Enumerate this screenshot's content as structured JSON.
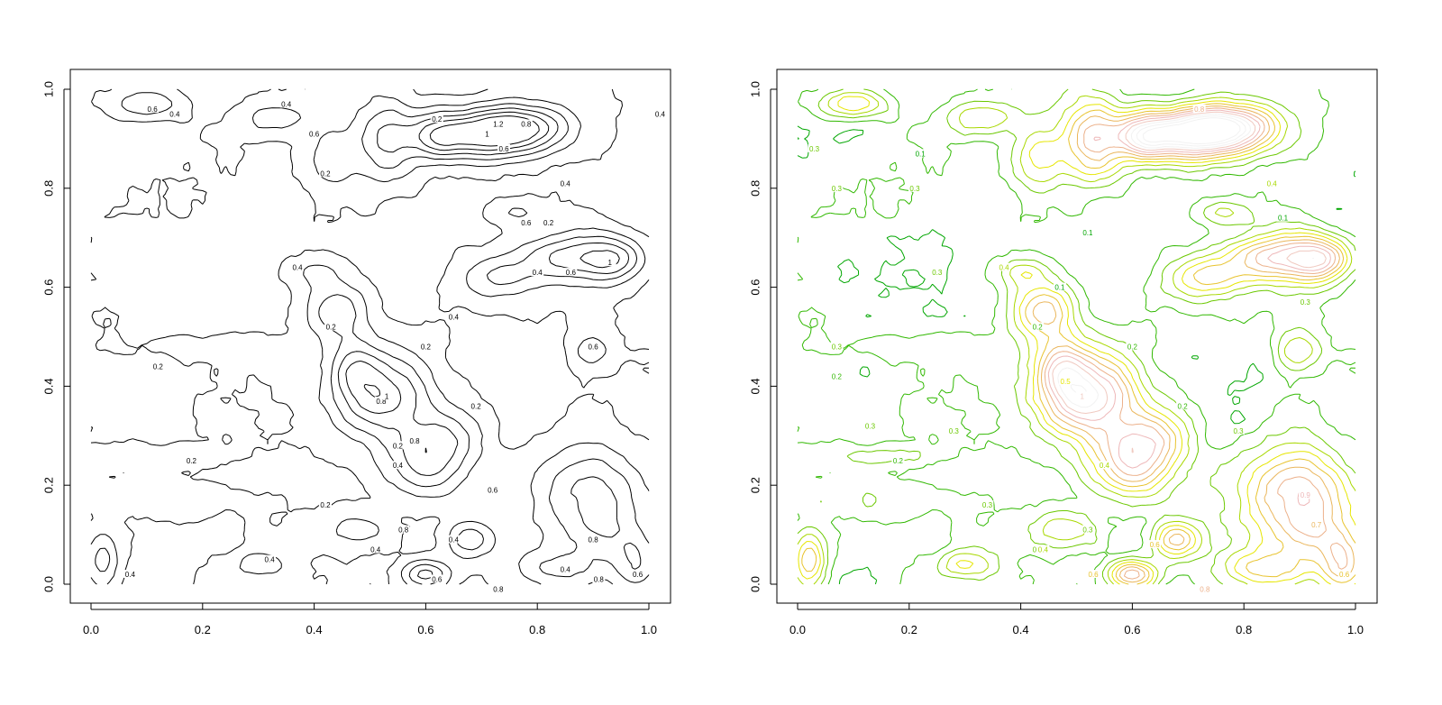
{
  "chart_data": [
    {
      "type": "contour",
      "title": "",
      "xlabel": "",
      "ylabel": "",
      "xlim": [
        0,
        1
      ],
      "ylim": [
        0,
        1
      ],
      "x_ticks": [
        "0.0",
        "0.2",
        "0.4",
        "0.6",
        "0.8",
        "1.0"
      ],
      "y_ticks": [
        "0.0",
        "0.2",
        "0.4",
        "0.6",
        "0.8",
        "1.0"
      ],
      "color_scale": "mono",
      "line_color": "#000000",
      "levels": [
        "0.2",
        "0.4",
        "0.6",
        "0.8",
        "1",
        "1.2"
      ],
      "labeled_contours": [
        {
          "label": "0.2",
          "x": 0.12,
          "y": 0.44
        },
        {
          "label": "0.2",
          "x": 0.18,
          "y": 0.25
        },
        {
          "label": "0.2",
          "x": 0.42,
          "y": 0.16
        },
        {
          "label": "0.2",
          "x": 0.55,
          "y": 0.28
        },
        {
          "label": "0.2",
          "x": 0.43,
          "y": 0.52
        },
        {
          "label": "0.2",
          "x": 0.6,
          "y": 0.48
        },
        {
          "label": "0.2",
          "x": 0.42,
          "y": 0.83
        },
        {
          "label": "0.2",
          "x": 0.62,
          "y": 0.94
        },
        {
          "label": "0.2",
          "x": 0.82,
          "y": 0.73
        },
        {
          "label": "0.2",
          "x": 0.69,
          "y": 0.36
        },
        {
          "label": "0.4",
          "x": 0.37,
          "y": 0.64
        },
        {
          "label": "0.4",
          "x": 0.55,
          "y": 0.24
        },
        {
          "label": "0.4",
          "x": 0.65,
          "y": 0.54
        },
        {
          "label": "0.4",
          "x": 0.85,
          "y": 0.81
        },
        {
          "label": "0.4",
          "x": 0.8,
          "y": 0.63
        },
        {
          "label": "0.4",
          "x": 0.35,
          "y": 0.97
        },
        {
          "label": "0.4",
          "x": 1.02,
          "y": 0.95
        },
        {
          "label": "0.4",
          "x": 0.15,
          "y": 0.95
        },
        {
          "label": "0.4",
          "x": 0.51,
          "y": 0.07
        },
        {
          "label": "0.4",
          "x": 0.65,
          "y": 0.09
        },
        {
          "label": "0.4",
          "x": 0.85,
          "y": 0.03
        },
        {
          "label": "0.4",
          "x": 0.32,
          "y": 0.05
        },
        {
          "label": "0.4",
          "x": 0.07,
          "y": 0.02
        },
        {
          "label": "0.6",
          "x": 0.11,
          "y": 0.96
        },
        {
          "label": "0.6",
          "x": 0.4,
          "y": 0.91
        },
        {
          "label": "0.6",
          "x": 0.78,
          "y": 0.73
        },
        {
          "label": "0.6",
          "x": 0.86,
          "y": 0.63
        },
        {
          "label": "0.6",
          "x": 0.72,
          "y": 0.19
        },
        {
          "label": "0.6",
          "x": 0.9,
          "y": 0.48
        },
        {
          "label": "0.6",
          "x": 0.62,
          "y": 0.01
        },
        {
          "label": "0.6",
          "x": 0.74,
          "y": 0.88
        },
        {
          "label": "0.6",
          "x": 0.98,
          "y": 0.02
        },
        {
          "label": "0.8",
          "x": 0.52,
          "y": 0.37
        },
        {
          "label": "0.8",
          "x": 0.58,
          "y": 0.29
        },
        {
          "label": "0.8",
          "x": 0.78,
          "y": 0.93
        },
        {
          "label": "0.8",
          "x": 0.9,
          "y": 0.09
        },
        {
          "label": "0.8",
          "x": 0.73,
          "y": -0.01
        },
        {
          "label": "0.8",
          "x": 0.91,
          "y": 0.01
        },
        {
          "label": "0.8",
          "x": 0.56,
          "y": 0.11
        },
        {
          "label": "1",
          "x": 0.53,
          "y": 0.38
        },
        {
          "label": "1",
          "x": 0.93,
          "y": 0.65
        },
        {
          "label": "1",
          "x": 0.71,
          "y": 0.91
        },
        {
          "label": "1.2",
          "x": 0.73,
          "y": 0.93
        }
      ]
    },
    {
      "type": "contour",
      "title": "",
      "xlabel": "",
      "ylabel": "",
      "xlim": [
        0,
        1
      ],
      "ylim": [
        0,
        1
      ],
      "x_ticks": [
        "0.0",
        "0.2",
        "0.4",
        "0.6",
        "0.8",
        "1.0"
      ],
      "y_ticks": [
        "0.0",
        "0.2",
        "0.4",
        "0.6",
        "0.8",
        "1.0"
      ],
      "color_scale": "terrain (green to yellow to pink)",
      "level_colors": [
        "#00a600",
        "#30b800",
        "#6bc800",
        "#a8d800",
        "#e6e600",
        "#e8c32e",
        "#eab65c",
        "#ecb18b",
        "#eeb8b9",
        "#f0c9c0",
        "#f2f2f2"
      ],
      "levels": [
        "0.1",
        "0.2",
        "0.3",
        "0.4",
        "0.5",
        "0.6",
        "0.7",
        "0.8",
        "0.9",
        "1",
        "1.1",
        "1.2",
        "1.3"
      ],
      "labeled_contours": [
        {
          "label": "0.1",
          "x": 0.22,
          "y": 0.87
        },
        {
          "label": "0.1",
          "x": 0.52,
          "y": 0.71
        },
        {
          "label": "0.1",
          "x": 0.47,
          "y": 0.6
        },
        {
          "label": "0.1",
          "x": 0.87,
          "y": 0.74
        },
        {
          "label": "0.2",
          "x": 0.18,
          "y": 0.25
        },
        {
          "label": "0.2",
          "x": 0.43,
          "y": 0.52
        },
        {
          "label": "0.2",
          "x": 0.6,
          "y": 0.48
        },
        {
          "label": "0.2",
          "x": 0.69,
          "y": 0.36
        },
        {
          "label": "0.2",
          "x": 0.07,
          "y": 0.42
        },
        {
          "label": "0.3",
          "x": 0.03,
          "y": 0.88
        },
        {
          "label": "0.3",
          "x": 0.07,
          "y": 0.8
        },
        {
          "label": "0.3",
          "x": 0.21,
          "y": 0.8
        },
        {
          "label": "0.3",
          "x": 0.25,
          "y": 0.63
        },
        {
          "label": "0.3",
          "x": 0.07,
          "y": 0.48
        },
        {
          "label": "0.3",
          "x": 0.13,
          "y": 0.32
        },
        {
          "label": "0.3",
          "x": 0.28,
          "y": 0.31
        },
        {
          "label": "0.3",
          "x": 0.34,
          "y": 0.16
        },
        {
          "label": "0.3",
          "x": 0.52,
          "y": 0.11
        },
        {
          "label": "0.3",
          "x": 0.43,
          "y": 0.07
        },
        {
          "label": "0.3",
          "x": 0.79,
          "y": 0.31
        },
        {
          "label": "0.3",
          "x": 0.91,
          "y": 0.57
        },
        {
          "label": "0.4",
          "x": 0.85,
          "y": 0.81
        },
        {
          "label": "0.4",
          "x": 0.55,
          "y": 0.24
        },
        {
          "label": "0.4",
          "x": 0.37,
          "y": 0.64
        },
        {
          "label": "0.4",
          "x": 0.44,
          "y": 0.07
        },
        {
          "label": "0.5",
          "x": 0.48,
          "y": 0.41
        },
        {
          "label": "0.5",
          "x": 0.91,
          "y": 0.18
        },
        {
          "label": "0.6",
          "x": 0.53,
          "y": 0.02
        },
        {
          "label": "0.6",
          "x": 0.64,
          "y": 0.08
        },
        {
          "label": "0.6",
          "x": 0.98,
          "y": 0.02
        },
        {
          "label": "0.7",
          "x": 0.93,
          "y": 0.12
        },
        {
          "label": "0.8",
          "x": 0.72,
          "y": 0.96
        },
        {
          "label": "0.8",
          "x": 0.73,
          "y": -0.01
        },
        {
          "label": "0.9",
          "x": 0.91,
          "y": 0.18
        },
        {
          "label": "1",
          "x": 0.51,
          "y": 0.38
        }
      ]
    }
  ]
}
